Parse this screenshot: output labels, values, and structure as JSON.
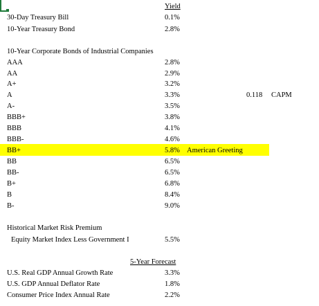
{
  "header": {
    "yield_label": "Yield"
  },
  "treasury": [
    {
      "label": "30-Day Treasury Bill",
      "value": "0.1%"
    },
    {
      "label": "10-Year Treasury Bond",
      "value": "2.8%"
    }
  ],
  "bonds": {
    "title": "10-Year Corporate Bonds of Industrial Companies",
    "rows": [
      {
        "rating": "AAA",
        "value": "2.8%"
      },
      {
        "rating": "AA",
        "value": "2.9%"
      },
      {
        "rating": "A+",
        "value": "3.2%"
      },
      {
        "rating": "A",
        "value": "3.3%"
      },
      {
        "rating": "A-",
        "value": "3.5%"
      },
      {
        "rating": "BBB+",
        "value": "3.8%"
      },
      {
        "rating": "BBB",
        "value": "4.1%"
      },
      {
        "rating": "BBB-",
        "value": "4.6%"
      },
      {
        "rating": "BB+",
        "value": "5.8%",
        "note": "American Greeting"
      },
      {
        "rating": "BB",
        "value": "6.5%"
      },
      {
        "rating": "BB-",
        "value": "6.5%"
      },
      {
        "rating": "B+",
        "value": "6.8%"
      },
      {
        "rating": "B",
        "value": "8.4%"
      },
      {
        "rating": "B-",
        "value": "9.0%"
      }
    ]
  },
  "capm": {
    "value": "0.118",
    "label": "CAPM"
  },
  "risk_premium": {
    "title": "Historical Market Risk Premium",
    "row_label": "Equity Market Index Less Government I",
    "row_value": "5.5%"
  },
  "forecast": {
    "header": "5-Year Forecast",
    "rows": [
      {
        "label": "U.S. Real GDP Annual Growth Rate",
        "value": "3.3%"
      },
      {
        "label": "U.S. GDP Annual Deflator Rate",
        "value": "1.8%"
      },
      {
        "label": "Consumer Price Index Annual Rate",
        "value": "2.2%"
      }
    ]
  },
  "colors": {
    "highlight": "#ffff00",
    "cell_cursor": "#1f7a3a"
  }
}
